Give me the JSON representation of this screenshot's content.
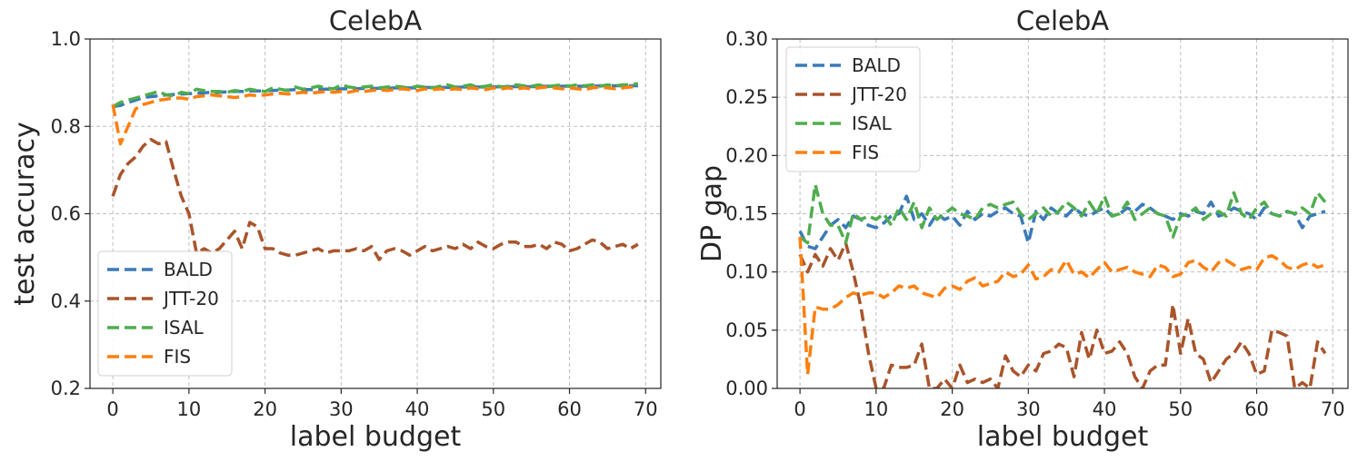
{
  "chart_data": [
    {
      "type": "line",
      "title": "CelebA",
      "xlabel": "label budget",
      "ylabel": "test accuracy",
      "xlim": [
        -3,
        72
      ],
      "ylim": [
        0.2,
        1.0
      ],
      "xticks": [
        0,
        10,
        20,
        30,
        40,
        50,
        60,
        70
      ],
      "yticks": [
        0.2,
        0.4,
        0.6,
        0.8,
        1.0
      ],
      "ytick_labels": [
        "0.2",
        "0.4",
        "0.6",
        "0.8",
        "1.0"
      ],
      "grid": true,
      "legend_position": "lower-left",
      "series": [
        {
          "name": "BALD",
          "color": "#3a7ab8",
          "values": [
            0.845,
            0.848,
            0.855,
            0.86,
            0.866,
            0.868,
            0.87,
            0.872,
            0.873,
            0.874,
            0.875,
            0.876,
            0.877,
            0.878,
            0.878,
            0.879,
            0.88,
            0.88,
            0.881,
            0.881,
            0.882,
            0.882,
            0.883,
            0.883,
            0.884,
            0.884,
            0.884,
            0.885,
            0.885,
            0.885,
            0.886,
            0.886,
            0.886,
            0.887,
            0.887,
            0.887,
            0.887,
            0.888,
            0.888,
            0.888,
            0.888,
            0.889,
            0.889,
            0.889,
            0.889,
            0.889,
            0.89,
            0.89,
            0.89,
            0.89,
            0.89,
            0.891,
            0.891,
            0.891,
            0.891,
            0.891,
            0.891,
            0.892,
            0.892,
            0.892,
            0.892,
            0.892,
            0.892,
            0.892,
            0.893,
            0.893,
            0.893,
            0.893,
            0.893,
            0.893
          ]
        },
        {
          "name": "JTT-20",
          "color": "#a9542b",
          "values": [
            0.64,
            0.69,
            0.715,
            0.73,
            0.755,
            0.77,
            0.76,
            0.765,
            0.7,
            0.64,
            0.6,
            0.51,
            0.52,
            0.51,
            0.52,
            0.54,
            0.56,
            0.52,
            0.58,
            0.57,
            0.52,
            0.52,
            0.51,
            0.505,
            0.505,
            0.51,
            0.515,
            0.52,
            0.51,
            0.515,
            0.515,
            0.515,
            0.52,
            0.515,
            0.525,
            0.495,
            0.515,
            0.52,
            0.515,
            0.505,
            0.515,
            0.525,
            0.515,
            0.52,
            0.525,
            0.52,
            0.53,
            0.52,
            0.535,
            0.525,
            0.52,
            0.53,
            0.535,
            0.535,
            0.525,
            0.525,
            0.53,
            0.52,
            0.535,
            0.53,
            0.515,
            0.52,
            0.53,
            0.54,
            0.535,
            0.52,
            0.525,
            0.53,
            0.52,
            0.53
          ]
        },
        {
          "name": "ISAL",
          "color": "#4fad4d",
          "values": [
            0.845,
            0.855,
            0.86,
            0.865,
            0.87,
            0.875,
            0.88,
            0.872,
            0.87,
            0.878,
            0.875,
            0.885,
            0.882,
            0.88,
            0.88,
            0.878,
            0.882,
            0.88,
            0.885,
            0.882,
            0.88,
            0.888,
            0.885,
            0.882,
            0.89,
            0.885,
            0.888,
            0.892,
            0.888,
            0.886,
            0.895,
            0.89,
            0.888,
            0.89,
            0.892,
            0.888,
            0.89,
            0.892,
            0.89,
            0.888,
            0.892,
            0.89,
            0.888,
            0.892,
            0.895,
            0.89,
            0.892,
            0.895,
            0.89,
            0.892,
            0.895,
            0.89,
            0.892,
            0.895,
            0.893,
            0.892,
            0.895,
            0.89,
            0.893,
            0.895,
            0.892,
            0.895,
            0.893,
            0.895,
            0.892,
            0.895,
            0.893,
            0.895,
            0.895,
            0.898
          ]
        },
        {
          "name": "FIS",
          "color": "#ff7f0e",
          "values": [
            0.85,
            0.76,
            0.8,
            0.84,
            0.85,
            0.855,
            0.86,
            0.862,
            0.865,
            0.865,
            0.862,
            0.868,
            0.87,
            0.872,
            0.87,
            0.868,
            0.866,
            0.868,
            0.872,
            0.87,
            0.872,
            0.874,
            0.876,
            0.874,
            0.876,
            0.878,
            0.876,
            0.878,
            0.88,
            0.878,
            0.88,
            0.878,
            0.882,
            0.88,
            0.882,
            0.884,
            0.882,
            0.884,
            0.886,
            0.884,
            0.882,
            0.886,
            0.884,
            0.886,
            0.884,
            0.886,
            0.884,
            0.888,
            0.886,
            0.884,
            0.888,
            0.886,
            0.888,
            0.886,
            0.888,
            0.886,
            0.888,
            0.89,
            0.888,
            0.886,
            0.888,
            0.886,
            0.884,
            0.888,
            0.89,
            0.888,
            0.886,
            0.888,
            0.89,
            0.89
          ]
        }
      ]
    },
    {
      "type": "line",
      "title": "CelebA",
      "xlabel": "label budget",
      "ylabel": "DP gap",
      "xlim": [
        -3,
        72
      ],
      "ylim": [
        0.0,
        0.3
      ],
      "xticks": [
        0,
        10,
        20,
        30,
        40,
        50,
        60,
        70
      ],
      "yticks": [
        0.0,
        0.05,
        0.1,
        0.15,
        0.2,
        0.25,
        0.3
      ],
      "ytick_labels": [
        "0.00",
        "0.05",
        "0.10",
        "0.15",
        "0.20",
        "0.25",
        "0.30"
      ],
      "grid": true,
      "legend_position": "upper-left",
      "series": [
        {
          "name": "BALD",
          "color": "#3a7ab8",
          "values": [
            0.135,
            0.122,
            0.12,
            0.13,
            0.14,
            0.145,
            0.138,
            0.148,
            0.145,
            0.14,
            0.138,
            0.142,
            0.148,
            0.15,
            0.165,
            0.145,
            0.15,
            0.14,
            0.15,
            0.145,
            0.148,
            0.14,
            0.152,
            0.145,
            0.15,
            0.148,
            0.152,
            0.155,
            0.15,
            0.148,
            0.125,
            0.152,
            0.145,
            0.155,
            0.15,
            0.148,
            0.155,
            0.15,
            0.148,
            0.152,
            0.155,
            0.148,
            0.15,
            0.155,
            0.152,
            0.158,
            0.155,
            0.15,
            0.148,
            0.145,
            0.15,
            0.148,
            0.152,
            0.15,
            0.16,
            0.148,
            0.15,
            0.155,
            0.152,
            0.15,
            0.145,
            0.155,
            0.15,
            0.148,
            0.152,
            0.15,
            0.138,
            0.148,
            0.15,
            0.152
          ]
        },
        {
          "name": "JTT-20",
          "color": "#a9542b",
          "values": [
            0.115,
            0.1,
            0.115,
            0.105,
            0.12,
            0.11,
            0.125,
            0.1,
            0.07,
            0.03,
            0.0,
            0.0,
            0.02,
            0.018,
            0.018,
            0.02,
            0.038,
            0.0,
            0.0,
            0.008,
            0.0,
            0.02,
            0.005,
            0.008,
            0.005,
            0.008,
            0.0,
            0.028,
            0.015,
            0.01,
            0.02,
            0.015,
            0.03,
            0.032,
            0.038,
            0.035,
            0.01,
            0.048,
            0.025,
            0.05,
            0.03,
            0.032,
            0.04,
            0.03,
            0.01,
            0.0,
            0.015,
            0.02,
            0.02,
            0.072,
            0.03,
            0.06,
            0.03,
            0.025,
            0.005,
            0.015,
            0.025,
            0.03,
            0.04,
            0.03,
            0.012,
            0.015,
            0.05,
            0.048,
            0.045,
            0.0,
            0.005,
            0.0,
            0.04,
            0.03
          ]
        },
        {
          "name": "ISAL",
          "color": "#4fad4d",
          "values": [
            0.13,
            0.125,
            0.175,
            0.15,
            0.14,
            0.14,
            0.125,
            0.15,
            0.145,
            0.148,
            0.145,
            0.15,
            0.14,
            0.155,
            0.145,
            0.16,
            0.138,
            0.155,
            0.145,
            0.15,
            0.155,
            0.15,
            0.148,
            0.145,
            0.155,
            0.158,
            0.155,
            0.158,
            0.16,
            0.15,
            0.145,
            0.15,
            0.155,
            0.148,
            0.152,
            0.16,
            0.155,
            0.148,
            0.16,
            0.15,
            0.165,
            0.148,
            0.15,
            0.16,
            0.145,
            0.15,
            0.155,
            0.15,
            0.148,
            0.13,
            0.148,
            0.15,
            0.155,
            0.145,
            0.15,
            0.152,
            0.148,
            0.168,
            0.15,
            0.145,
            0.155,
            0.16,
            0.15,
            0.148,
            0.152,
            0.15,
            0.155,
            0.15,
            0.168,
            0.16
          ]
        },
        {
          "name": "FIS",
          "color": "#ff7f0e",
          "values": [
            0.13,
            0.012,
            0.07,
            0.068,
            0.068,
            0.072,
            0.078,
            0.082,
            0.08,
            0.082,
            0.082,
            0.078,
            0.082,
            0.088,
            0.086,
            0.088,
            0.082,
            0.08,
            0.078,
            0.086,
            0.088,
            0.085,
            0.092,
            0.095,
            0.088,
            0.09,
            0.092,
            0.1,
            0.096,
            0.098,
            0.106,
            0.094,
            0.096,
            0.102,
            0.1,
            0.11,
            0.098,
            0.1,
            0.095,
            0.102,
            0.108,
            0.1,
            0.102,
            0.104,
            0.1,
            0.098,
            0.096,
            0.106,
            0.104,
            0.096,
            0.098,
            0.108,
            0.11,
            0.104,
            0.1,
            0.108,
            0.11,
            0.106,
            0.102,
            0.104,
            0.102,
            0.112,
            0.114,
            0.11,
            0.104,
            0.102,
            0.106,
            0.108,
            0.104,
            0.106
          ]
        }
      ]
    }
  ]
}
